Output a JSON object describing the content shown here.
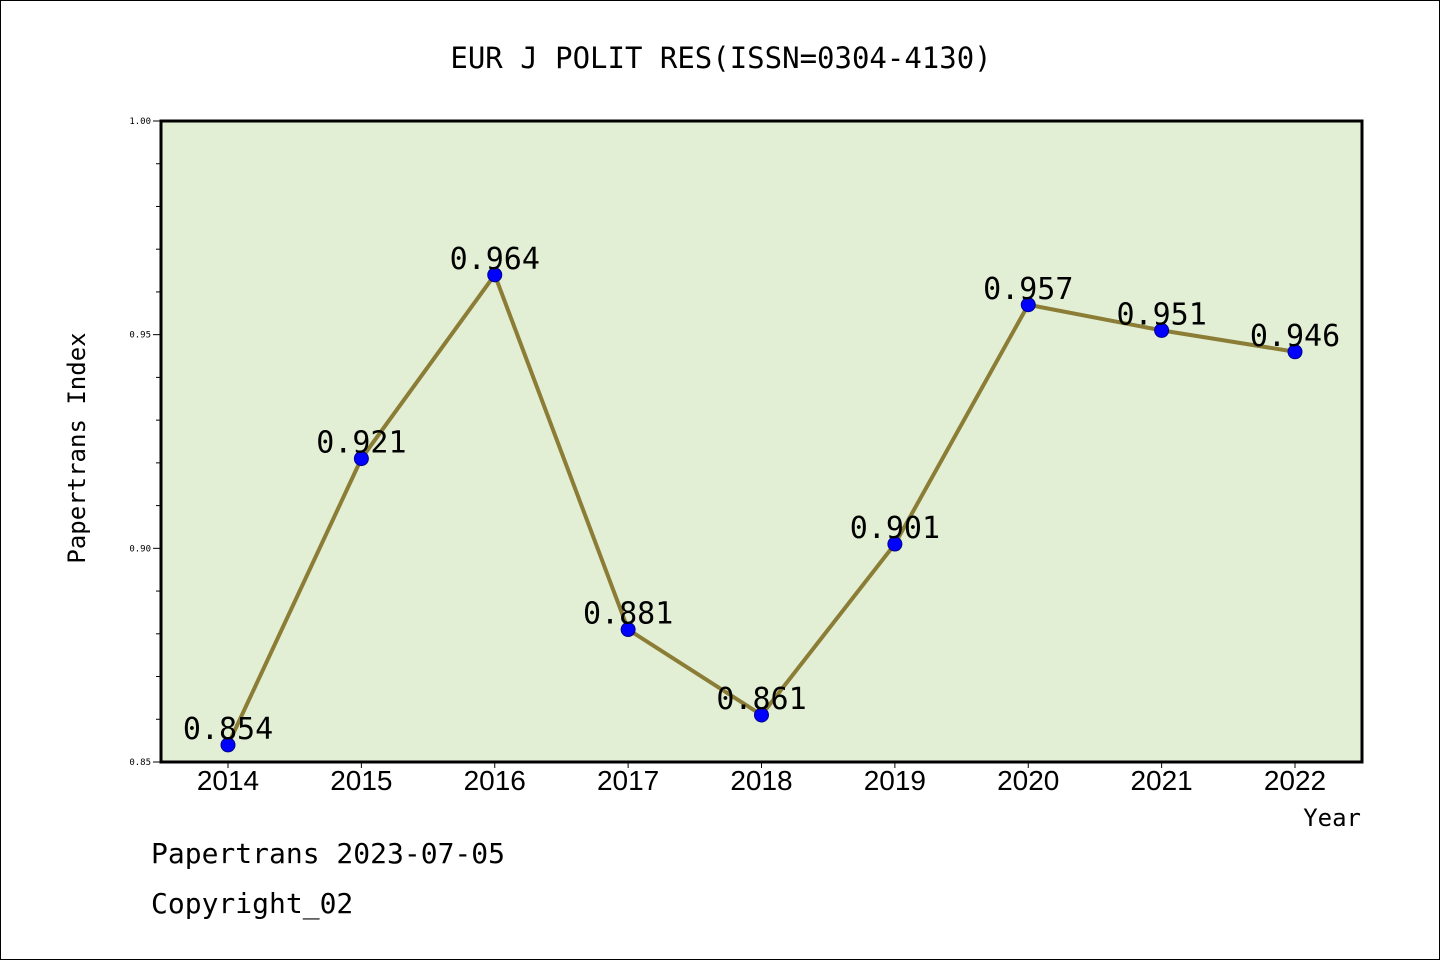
{
  "chart_data": {
    "type": "line",
    "title": "EUR J POLIT RES(ISSN=0304-4130)",
    "xlabel": "Year",
    "ylabel": "Papertrans Index",
    "categories": [
      "2014",
      "2015",
      "2016",
      "2017",
      "2018",
      "2019",
      "2020",
      "2021",
      "2022"
    ],
    "values": [
      0.854,
      0.921,
      0.964,
      0.881,
      0.861,
      0.901,
      0.957,
      0.951,
      0.946
    ],
    "data_labels": [
      "0.854",
      "0.921",
      "0.964",
      "0.881",
      "0.861",
      "0.901",
      "0.957",
      "0.951",
      "0.946"
    ],
    "ylim": [
      0.85,
      1.0
    ],
    "yticks": [
      "0.85",
      "0.90",
      "0.95",
      "1.00"
    ],
    "grid": false,
    "colors": {
      "plot_background": "#e2efd4",
      "line": "#8b7d35",
      "marker": "#0000ff"
    }
  },
  "footer": {
    "line1": "Papertrans 2023-07-05",
    "line2": "Copyright_02"
  }
}
